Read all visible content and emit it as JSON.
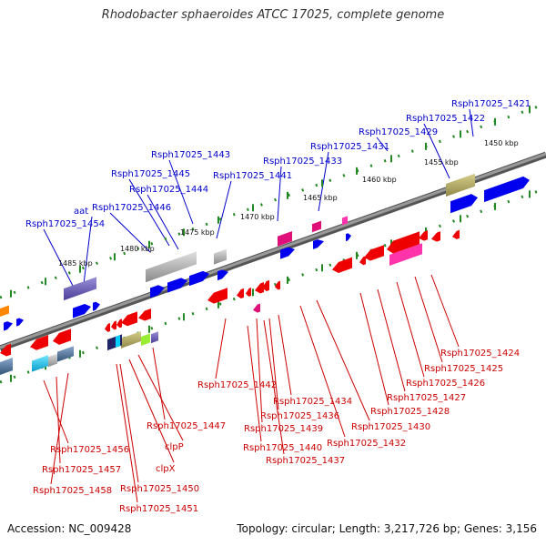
{
  "title": "Rhodobacter sphaeroides ATCC 17025, complete genome",
  "accession_text": "Accession: NC_009428",
  "summary_text": "Topology: circular; Length: 3,217,726 bp; Genes: 3,156",
  "colors": {
    "backbone": "#777777",
    "ruler_dots": "#228822",
    "plus_label": "#0000cc",
    "minus_label": "#cc0000"
  },
  "ruler_labels": [
    "1450 kbp",
    "1455 kbp",
    "1460 kbp",
    "1465 kbp",
    "1470 kbp",
    "1475 kbp",
    "1480 kbp",
    "1485 kbp"
  ],
  "plus_genes": [
    "Rsph17025_1421",
    "Rsph17025_1422",
    "Rsph17025_1429",
    "Rsph17025_1431",
    "Rsph17025_1433",
    "Rsph17025_1441",
    "Rsph17025_1443",
    "Rsph17025_1445",
    "Rsph17025_1444",
    "Rsph17025_1446",
    "aat",
    "Rsph17025_1454"
  ],
  "minus_genes": [
    "Rsph17025_1424",
    "Rsph17025_1425",
    "Rsph17025_1426",
    "Rsph17025_1427",
    "Rsph17025_1428",
    "Rsph17025_1442",
    "Rsph17025_1434",
    "Rsph17025_1436",
    "Rsph17025_1430",
    "Rsph17025_1439",
    "Rsph17025_1447",
    "Rsph17025_1432",
    "Rsph17025_1440",
    "clpP",
    "Rsph17025_1437",
    "Rsph17025_1456",
    "clpX",
    "Rsph17025_1457",
    "Rsph17025_1450",
    "Rsph17025_1458",
    "Rsph17025_1451"
  ]
}
